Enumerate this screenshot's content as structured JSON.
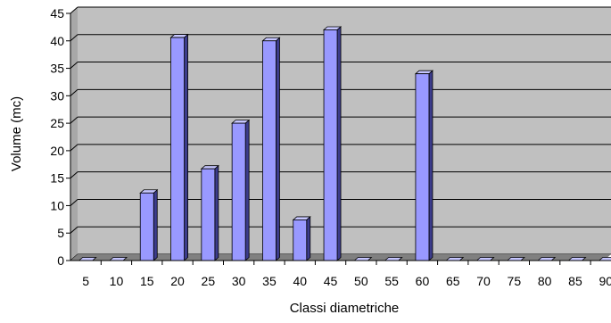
{
  "chart_data": {
    "type": "bar",
    "title": "",
    "xlabel": "Classi diametriche",
    "ylabel": "Volume (mc)",
    "categories": [
      "5",
      "10",
      "15",
      "20",
      "25",
      "30",
      "35",
      "40",
      "45",
      "50",
      "55",
      "60",
      "65",
      "70",
      "75",
      "80",
      "85",
      "90"
    ],
    "values": [
      0,
      0,
      12.3,
      40.6,
      16.7,
      25,
      40,
      7.4,
      42,
      0,
      0,
      34,
      0,
      0,
      0,
      0,
      0,
      0
    ],
    "ylim": [
      0,
      45
    ],
    "yticks": [
      "0",
      "5",
      "10",
      "15",
      "20",
      "25",
      "30",
      "35",
      "40",
      "45"
    ],
    "grid": true,
    "legend": "none",
    "colors": {
      "bar_front": "#9999ff",
      "bar_side": "#3c3c8c",
      "bar_top": "#c6c6ff",
      "plot_back": "#c0c0c0",
      "floor": "#808080"
    }
  }
}
